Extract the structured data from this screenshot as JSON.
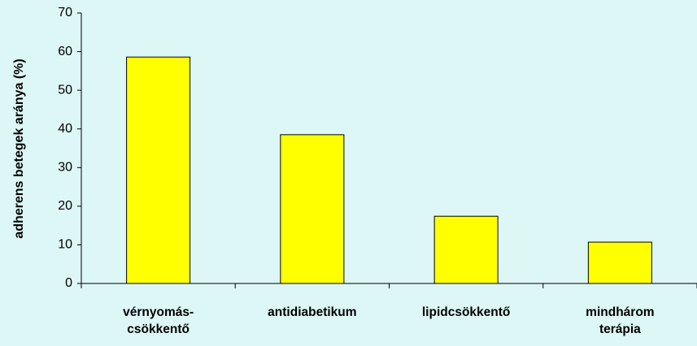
{
  "chart_data": {
    "type": "bar",
    "y_label": "adherens betegek aránya (%)",
    "categories": [
      "vérnyomás-\ncsökkentő",
      "antidiabetikum",
      "lipidcsökkentő",
      "mindhárom\nterápia"
    ],
    "values": [
      58.6,
      38.5,
      17.4,
      10.7
    ],
    "color": "#ffff00",
    "ylim": [
      0,
      70
    ],
    "yticks": [
      0,
      10,
      20,
      30,
      40,
      50,
      60,
      70
    ],
    "grid": false
  }
}
